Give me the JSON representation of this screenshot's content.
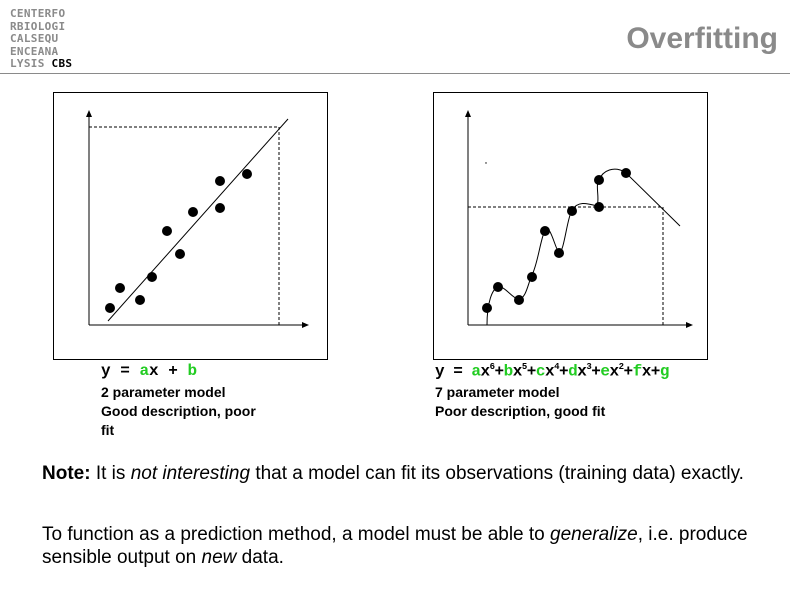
{
  "logo": {
    "lines": [
      "CENTERFO",
      "RBIOLOGI",
      "CALSEQU",
      "ENCEANA"
    ],
    "last_prefix": "LYSIS ",
    "last_bold": "CBS"
  },
  "title": "Overfitting",
  "left_panel": {
    "equation": {
      "y": "y",
      "eq": "=",
      "a": "a",
      "x": "x",
      "plus": "+",
      "b": "b"
    },
    "caption_line1": "2 parameter model",
    "caption_line2": "Good description, poor",
    "caption_line3": "fit"
  },
  "right_panel": {
    "caption_line1": "7 parameter model",
    "caption_line2": "Poor description, good fit"
  },
  "note": {
    "p1_bold": "Note:",
    "p1_a": " It is ",
    "p1_italic": "not interesting",
    "p1_b": " that a model can fit its observations (training data) exactly.",
    "p2_a": "To function as a prediction method, a model must be able to ",
    "p2_italic1": "generalize",
    "p2_b": ", i.e. produce sensible output on ",
    "p2_italic2": "new",
    "p2_c": " data."
  },
  "colors": {
    "accent_green": "#22cc22",
    "title_gray": "#8a8a8a"
  }
}
